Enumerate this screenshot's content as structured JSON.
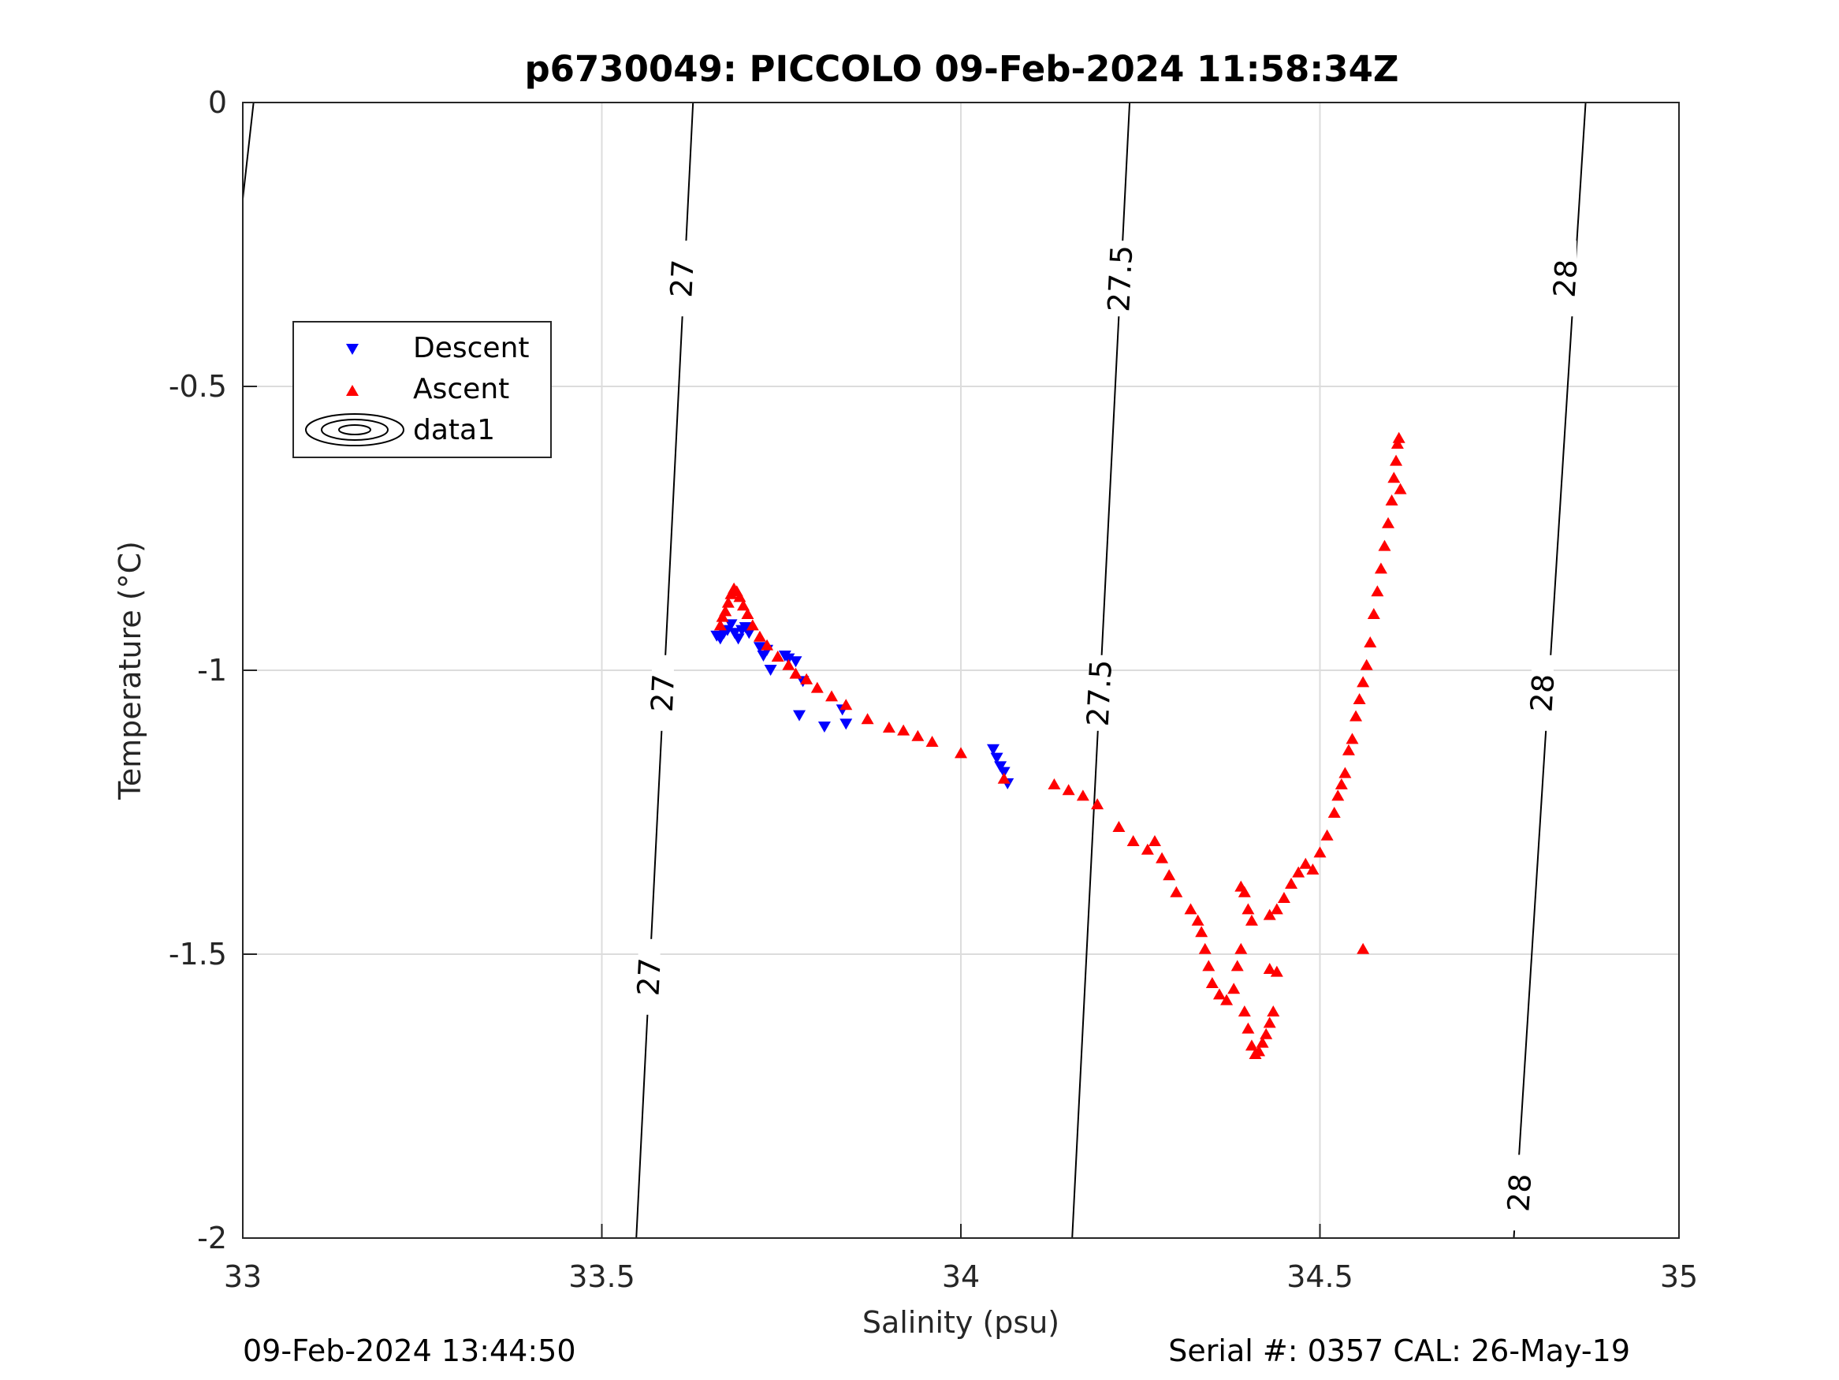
{
  "title": "p6730049: PICCOLO 09-Feb-2024 11:58:34Z",
  "footer_left": "09-Feb-2024 13:44:50",
  "footer_right": "Serial #: 0357  CAL: 26-May-19",
  "chart_data": {
    "type": "scatter",
    "title": "p6730049: PICCOLO 09-Feb-2024 11:58:34Z",
    "xlabel": "Salinity (psu)",
    "ylabel": "Temperature (°C)",
    "xlim": [
      33,
      35
    ],
    "ylim": [
      -2,
      0
    ],
    "xticks": [
      33,
      33.5,
      34,
      34.5,
      35
    ],
    "xtick_labels": [
      "33",
      "33.5",
      "34",
      "34.5",
      "35"
    ],
    "yticks": [
      -2,
      -1.5,
      -1,
      -0.5,
      0
    ],
    "ytick_labels": [
      "-2",
      "-1.5",
      "-1",
      "-0.5",
      "0"
    ],
    "grid": true,
    "legend": {
      "placement": "upper-left",
      "entries": [
        "Descent",
        "Ascent",
        "data1"
      ]
    },
    "colors": {
      "descent": "#0000ff",
      "ascent": "#ff0000",
      "contour": "#000000",
      "grid": "#dcdcdc"
    },
    "contours": [
      {
        "level_label": "27",
        "points": [
          [
            33.548,
            -2
          ],
          [
            33.627,
            0
          ]
        ],
        "labels": [
          {
            "text": "27",
            "x": 33.566,
            "y": -1.54
          },
          {
            "text": "27",
            "x": 33.585,
            "y": -1.04
          },
          {
            "text": "27",
            "x": 33.612,
            "y": -0.31
          }
        ]
      },
      {
        "level_label": "27.5",
        "points": [
          [
            34.155,
            -2
          ],
          [
            34.235,
            0
          ]
        ],
        "labels": [
          {
            "text": "27.5",
            "x": 34.193,
            "y": -1.04
          },
          {
            "text": "27.5",
            "x": 34.222,
            "y": -0.31
          }
        ]
      },
      {
        "level_label": "28",
        "points": [
          [
            34.77,
            -2
          ],
          [
            34.87,
            0
          ]
        ],
        "labels": [
          {
            "text": "28",
            "x": 34.778,
            "y": -1.92
          },
          {
            "text": "28",
            "x": 34.81,
            "y": -1.04
          },
          {
            "text": "28",
            "x": 34.842,
            "y": -0.31
          }
        ]
      }
    ],
    "corner_contour": [
      [
        33.0,
        -0.17
      ],
      [
        33.015,
        0
      ]
    ],
    "series": [
      {
        "name": "Descent",
        "marker": "triangle-down",
        "color": "#0000ff",
        "points": [
          [
            33.66,
            -0.94
          ],
          [
            33.665,
            -0.945
          ],
          [
            33.67,
            -0.935
          ],
          [
            33.675,
            -0.93
          ],
          [
            33.68,
            -0.92
          ],
          [
            33.685,
            -0.935
          ],
          [
            33.69,
            -0.945
          ],
          [
            33.695,
            -0.93
          ],
          [
            33.7,
            -0.925
          ],
          [
            33.705,
            -0.935
          ],
          [
            33.72,
            -0.96
          ],
          [
            33.725,
            -0.975
          ],
          [
            33.73,
            -0.965
          ],
          [
            33.735,
            -1.0
          ],
          [
            33.755,
            -0.975
          ],
          [
            33.76,
            -0.98
          ],
          [
            33.77,
            -0.985
          ],
          [
            33.775,
            -1.08
          ],
          [
            33.78,
            -1.02
          ],
          [
            33.81,
            -1.1
          ],
          [
            33.835,
            -1.07
          ],
          [
            33.84,
            -1.095
          ],
          [
            34.045,
            -1.14
          ],
          [
            34.05,
            -1.155
          ],
          [
            34.055,
            -1.17
          ],
          [
            34.06,
            -1.18
          ],
          [
            34.065,
            -1.2
          ]
        ]
      },
      {
        "name": "Ascent",
        "marker": "triangle-up",
        "color": "#ff0000",
        "points": [
          [
            33.665,
            -0.92
          ],
          [
            33.668,
            -0.905
          ],
          [
            33.672,
            -0.895
          ],
          [
            33.676,
            -0.88
          ],
          [
            33.68,
            -0.865
          ],
          [
            33.684,
            -0.855
          ],
          [
            33.688,
            -0.86
          ],
          [
            33.692,
            -0.87
          ],
          [
            33.697,
            -0.885
          ],
          [
            33.703,
            -0.9
          ],
          [
            33.71,
            -0.92
          ],
          [
            33.72,
            -0.94
          ],
          [
            33.73,
            -0.955
          ],
          [
            33.745,
            -0.975
          ],
          [
            33.76,
            -0.99
          ],
          [
            33.77,
            -1.005
          ],
          [
            33.785,
            -1.015
          ],
          [
            33.8,
            -1.03
          ],
          [
            33.82,
            -1.045
          ],
          [
            33.84,
            -1.06
          ],
          [
            33.87,
            -1.085
          ],
          [
            33.9,
            -1.1
          ],
          [
            33.92,
            -1.105
          ],
          [
            33.94,
            -1.115
          ],
          [
            33.96,
            -1.125
          ],
          [
            34.0,
            -1.145
          ],
          [
            34.06,
            -1.19
          ],
          [
            34.13,
            -1.2
          ],
          [
            34.15,
            -1.21
          ],
          [
            34.17,
            -1.22
          ],
          [
            34.19,
            -1.235
          ],
          [
            34.22,
            -1.275
          ],
          [
            34.24,
            -1.3
          ],
          [
            34.26,
            -1.315
          ],
          [
            34.27,
            -1.3
          ],
          [
            34.28,
            -1.33
          ],
          [
            34.29,
            -1.36
          ],
          [
            34.3,
            -1.39
          ],
          [
            34.32,
            -1.42
          ],
          [
            34.33,
            -1.44
          ],
          [
            34.335,
            -1.46
          ],
          [
            34.34,
            -1.49
          ],
          [
            34.345,
            -1.52
          ],
          [
            34.35,
            -1.55
          ],
          [
            34.36,
            -1.57
          ],
          [
            34.37,
            -1.58
          ],
          [
            34.38,
            -1.56
          ],
          [
            34.385,
            -1.52
          ],
          [
            34.39,
            -1.49
          ],
          [
            34.395,
            -1.6
          ],
          [
            34.4,
            -1.63
          ],
          [
            34.405,
            -1.66
          ],
          [
            34.41,
            -1.675
          ],
          [
            34.415,
            -1.67
          ],
          [
            34.42,
            -1.655
          ],
          [
            34.425,
            -1.64
          ],
          [
            34.43,
            -1.62
          ],
          [
            34.435,
            -1.6
          ],
          [
            34.44,
            -1.53
          ],
          [
            34.43,
            -1.525
          ],
          [
            34.39,
            -1.38
          ],
          [
            34.395,
            -1.39
          ],
          [
            34.4,
            -1.42
          ],
          [
            34.405,
            -1.44
          ],
          [
            34.43,
            -1.43
          ],
          [
            34.44,
            -1.42
          ],
          [
            34.45,
            -1.4
          ],
          [
            34.46,
            -1.375
          ],
          [
            34.47,
            -1.355
          ],
          [
            34.48,
            -1.34
          ],
          [
            34.49,
            -1.35
          ],
          [
            34.5,
            -1.32
          ],
          [
            34.51,
            -1.29
          ],
          [
            34.52,
            -1.25
          ],
          [
            34.525,
            -1.22
          ],
          [
            34.53,
            -1.2
          ],
          [
            34.535,
            -1.18
          ],
          [
            34.54,
            -1.14
          ],
          [
            34.545,
            -1.12
          ],
          [
            34.55,
            -1.08
          ],
          [
            34.555,
            -1.05
          ],
          [
            34.56,
            -1.02
          ],
          [
            34.565,
            -0.99
          ],
          [
            34.57,
            -0.95
          ],
          [
            34.575,
            -0.9
          ],
          [
            34.58,
            -0.86
          ],
          [
            34.585,
            -0.82
          ],
          [
            34.59,
            -0.78
          ],
          [
            34.595,
            -0.74
          ],
          [
            34.6,
            -0.7
          ],
          [
            34.603,
            -0.66
          ],
          [
            34.606,
            -0.63
          ],
          [
            34.608,
            -0.6
          ],
          [
            34.61,
            -0.59
          ],
          [
            34.612,
            -0.68
          ],
          [
            34.56,
            -1.49
          ]
        ]
      }
    ]
  }
}
